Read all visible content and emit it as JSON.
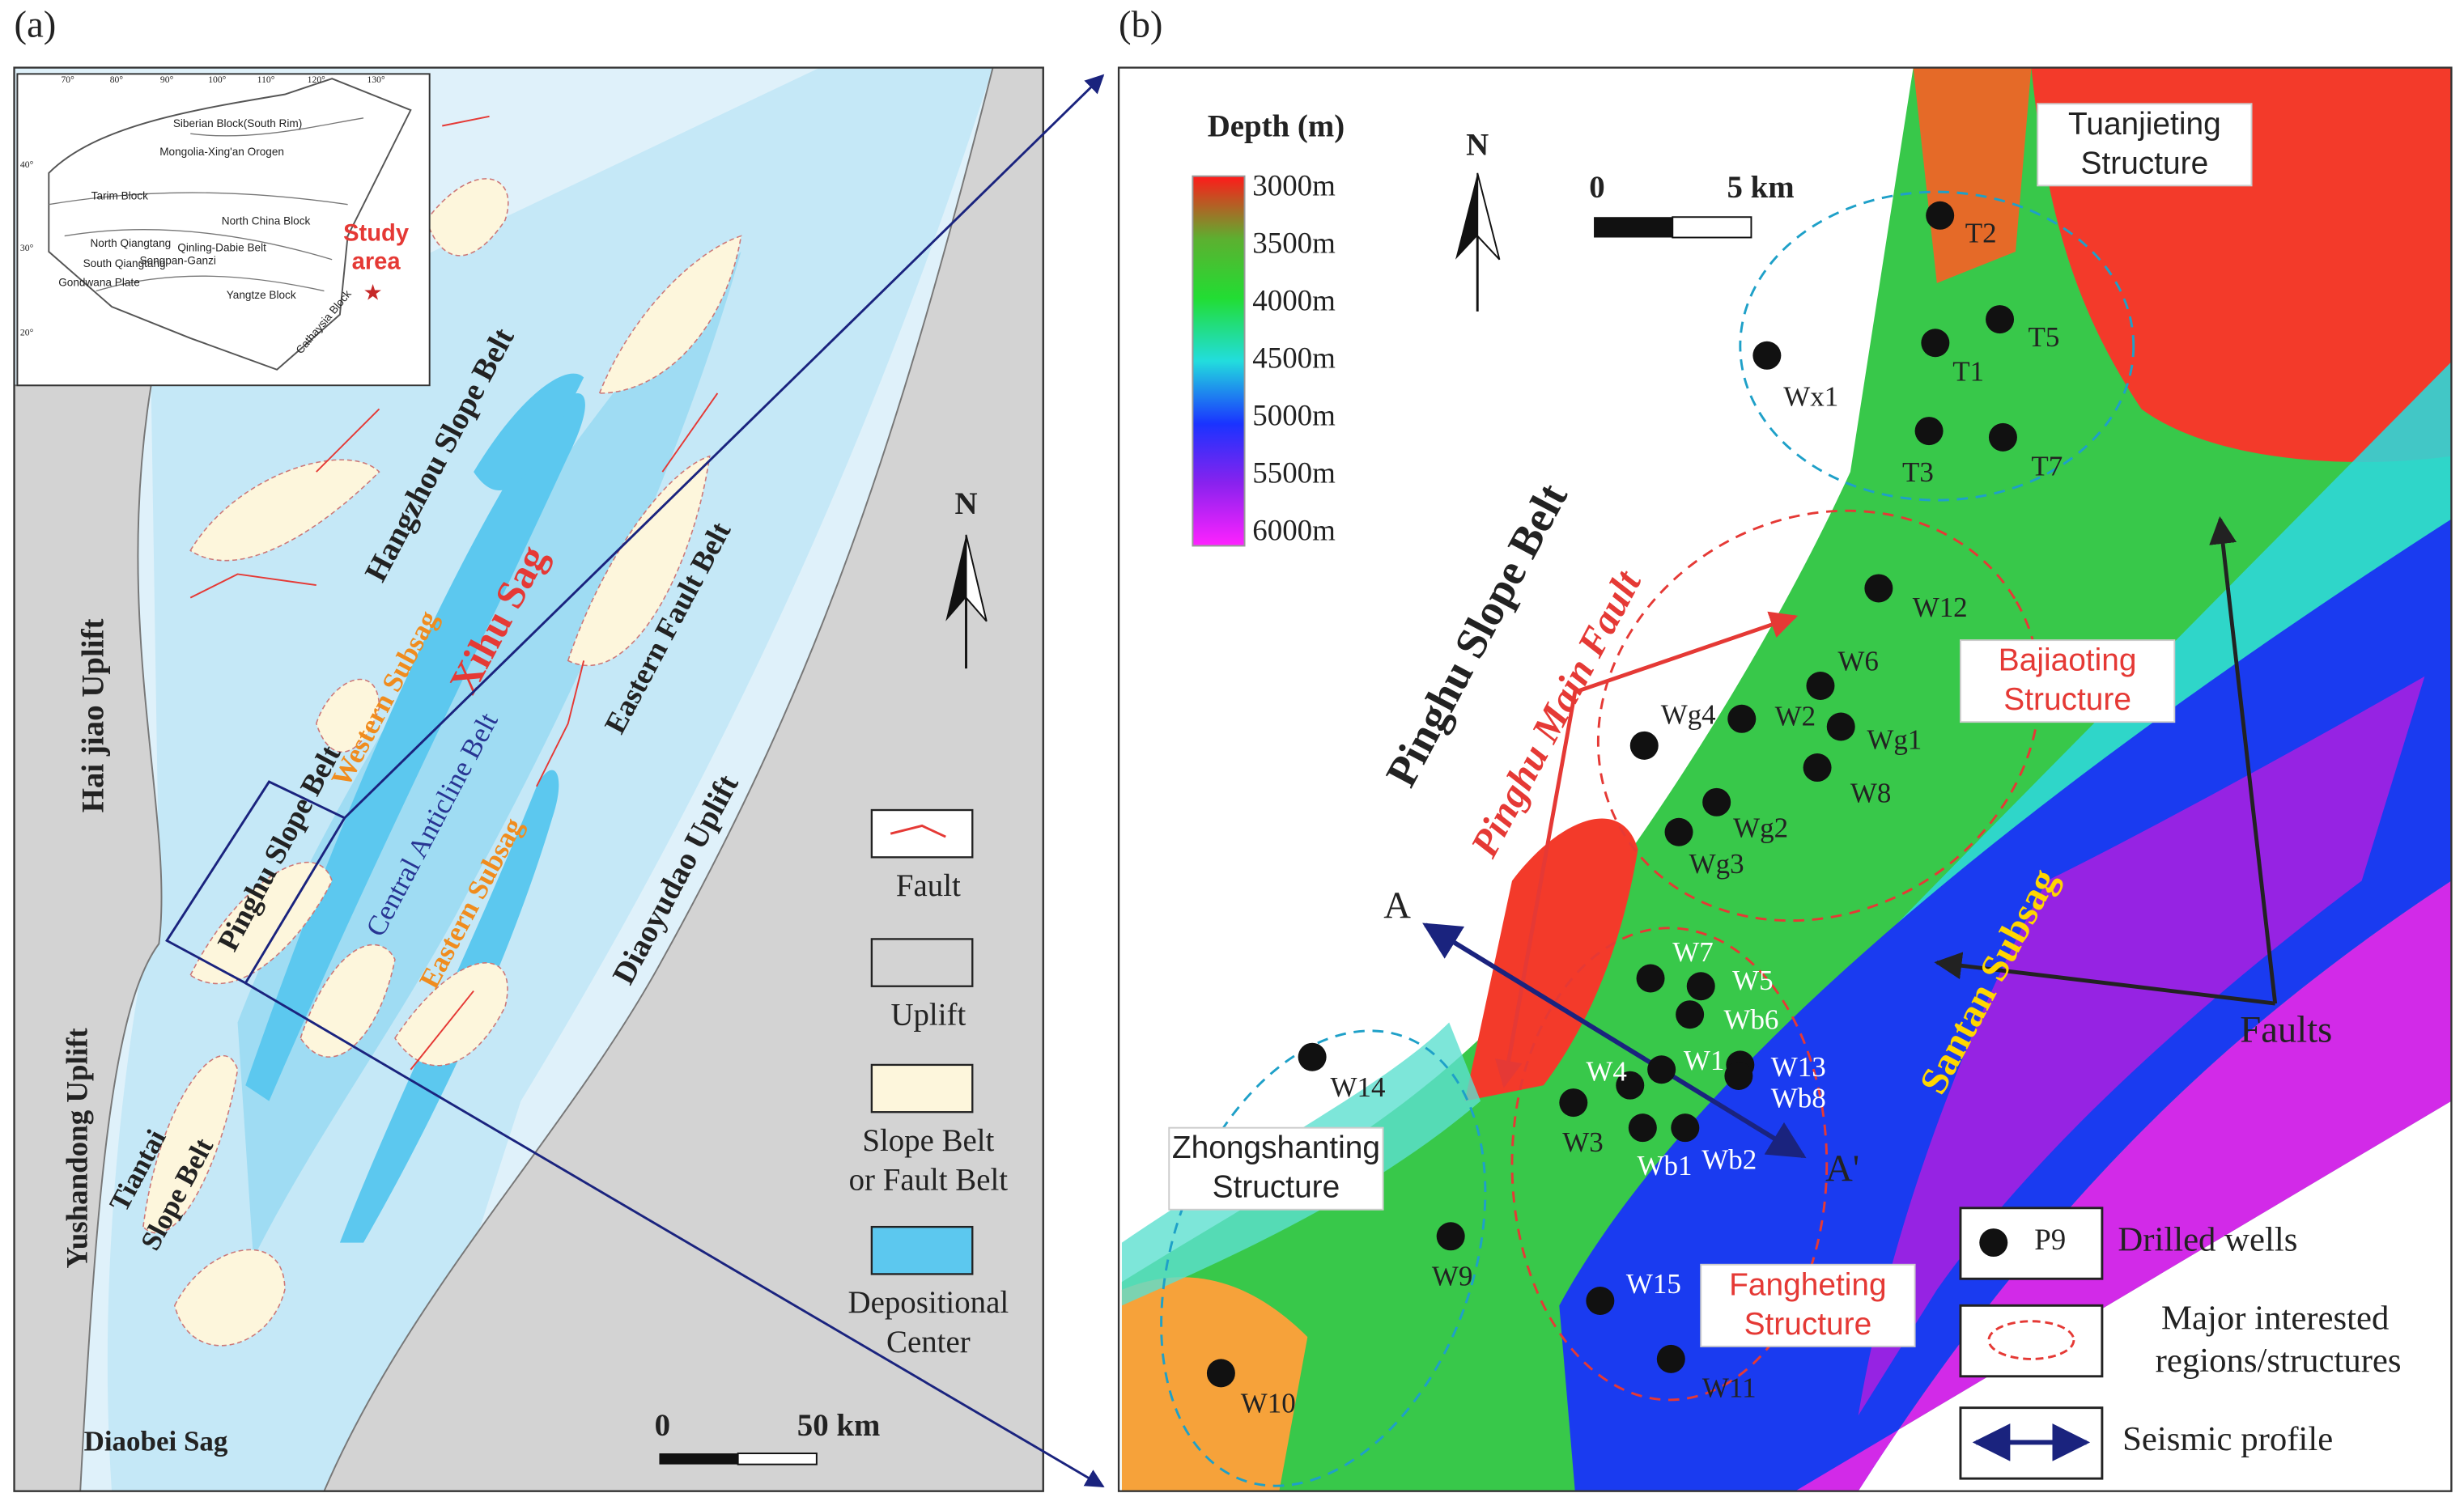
{
  "panel_a": {
    "label": "(a)",
    "inset": {
      "lon_ticks": [
        "70°",
        "80°",
        "90°",
        "100°",
        "110°",
        "120°",
        "130°"
      ],
      "lat_ticks": [
        "40°",
        "30°",
        "20°"
      ],
      "blocks": [
        "Siberian Block(South Rim)",
        "Mongolia-Xing'an Orogen",
        "Tarim Block",
        "North China Block",
        "Qinling-Dabie Belt",
        "North Qiangtang",
        "South Qiangtang",
        "Songpan-Ganzi",
        "Gondwana Plate",
        "Yangtze Block",
        "Cathaysia Block"
      ],
      "study_area": [
        "Study",
        "area"
      ]
    },
    "units": [
      "Hangzhou Slope Belt",
      "Western Subsag",
      "Xihu Sag",
      "Central Anticline Belt",
      "Eastern Subsag",
      "Eastern Fault Belt",
      "Pinghu Slope Belt",
      "Hai jiao Uplift",
      "Diaoyudao Uplift",
      "Yushandong Uplift",
      "Diaobei Sag"
    ],
    "tiantai": [
      "Tiantai",
      "Slope Belt"
    ],
    "north": "N",
    "legend": [
      [
        "Fault"
      ],
      [
        "Uplift"
      ],
      [
        "Slope Belt",
        "or Fault Belt"
      ],
      [
        "Depositional",
        "Center"
      ]
    ],
    "scale": [
      "0",
      "50 km"
    ]
  },
  "panel_b": {
    "label": "(b)",
    "colorbar": {
      "title": "Depth (m)",
      "ticks": [
        "3000m",
        "3500m",
        "4000m",
        "4500m",
        "5000m",
        "5500m",
        "6000m"
      ]
    },
    "north": "N",
    "scale": [
      "0",
      "5 km"
    ],
    "structures": [
      [
        "Tuanjieting",
        "Structure"
      ],
      [
        "Bajiaoting",
        "Structure"
      ],
      [
        "Zhongshanting",
        "Structure"
      ],
      [
        "Fangheting",
        "Structure"
      ]
    ],
    "labels": {
      "slope": "Pinghu Slope Belt",
      "fault": "Pinghu Main Fault",
      "subsag": "Santan Subsag",
      "faults": "Faults",
      "a": "A",
      "a_prime": "A'"
    },
    "wells": [
      "T2",
      "T5",
      "T1",
      "Wx1",
      "T3",
      "T7",
      "W12",
      "W6",
      "W2",
      "Wg4",
      "Wg1",
      "W8",
      "Wg2",
      "Wg3",
      "W7",
      "W5",
      "Wb6",
      "W1",
      "W13",
      "Wb8",
      "W4",
      "W3",
      "Wb1",
      "Wb2",
      "W14",
      "W9",
      "W15",
      "W11",
      "W10"
    ],
    "legend": {
      "sample": "P9",
      "wells": "Drilled wells",
      "regions": [
        "Major interested",
        "regions/structures"
      ],
      "profile": "Seismic profile"
    }
  }
}
